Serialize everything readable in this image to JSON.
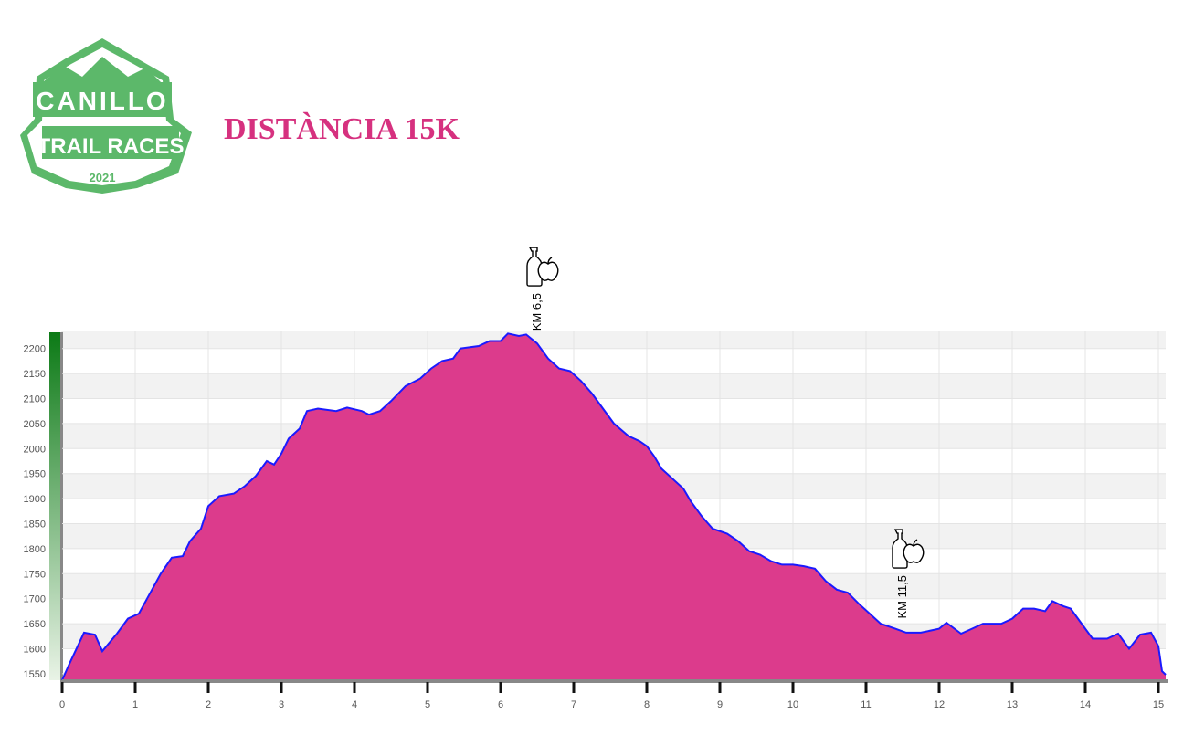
{
  "logo": {
    "line1": "CANILLO",
    "line2": "TRAIL RACES",
    "year": "2021"
  },
  "chart_data": {
    "type": "area",
    "title": "DISTÀNCIA 15K",
    "x": [
      0,
      0.1,
      0.3,
      0.45,
      0.55,
      0.75,
      0.9,
      1.05,
      1.2,
      1.35,
      1.5,
      1.65,
      1.75,
      1.9,
      2.0,
      2.15,
      2.35,
      2.5,
      2.65,
      2.8,
      2.9,
      3.0,
      3.1,
      3.25,
      3.35,
      3.5,
      3.75,
      3.9,
      4.1,
      4.2,
      4.35,
      4.5,
      4.7,
      4.9,
      5.05,
      5.2,
      5.35,
      5.45,
      5.7,
      5.85,
      6.0,
      6.1,
      6.25,
      6.35,
      6.5,
      6.65,
      6.8,
      6.95,
      7.1,
      7.25,
      7.4,
      7.55,
      7.75,
      7.9,
      8.0,
      8.1,
      8.2,
      8.35,
      8.5,
      8.6,
      8.75,
      8.9,
      9.1,
      9.25,
      9.4,
      9.55,
      9.7,
      9.85,
      10.0,
      10.15,
      10.3,
      10.45,
      10.6,
      10.75,
      10.9,
      11.05,
      11.2,
      11.4,
      11.55,
      11.75,
      12.0,
      12.1,
      12.3,
      12.45,
      12.6,
      12.85,
      13.0,
      13.15,
      13.3,
      13.45,
      13.55,
      13.7,
      13.8,
      13.9,
      14.0,
      14.1,
      14.3,
      14.45,
      14.6,
      14.75,
      14.9,
      15.0,
      15.05,
      15.1
    ],
    "series": [
      {
        "fill": "#dc3b8c",
        "color": "#1a1aff",
        "values": [
          1537,
          1570,
          1632,
          1628,
          1595,
          1630,
          1660,
          1670,
          1710,
          1750,
          1782,
          1785,
          1815,
          1840,
          1885,
          1905,
          1910,
          1925,
          1945,
          1975,
          1968,
          1990,
          2020,
          2040,
          2075,
          2080,
          2075,
          2082,
          2075,
          2068,
          2075,
          2095,
          2125,
          2140,
          2160,
          2175,
          2180,
          2200,
          2205,
          2215,
          2215,
          2230,
          2225,
          2228,
          2210,
          2180,
          2160,
          2155,
          2135,
          2110,
          2080,
          2050,
          2025,
          2015,
          2005,
          1985,
          1960,
          1940,
          1920,
          1895,
          1865,
          1840,
          1830,
          1815,
          1795,
          1788,
          1775,
          1768,
          1768,
          1765,
          1760,
          1735,
          1718,
          1712,
          1690,
          1670,
          1650,
          1640,
          1632,
          1632,
          1640,
          1652,
          1630,
          1640,
          1650,
          1650,
          1660,
          1680,
          1680,
          1675,
          1695,
          1685,
          1680,
          1660,
          1640,
          1620,
          1620,
          1630,
          1600,
          1628,
          1632,
          1605,
          1555,
          1548
        ]
      }
    ],
    "xlim": [
      0,
      15.1
    ],
    "xticks": [
      0,
      1,
      2,
      3,
      4,
      5,
      6,
      7,
      8,
      9,
      10,
      11,
      12,
      13,
      14,
      15
    ],
    "ylim": [
      1537,
      2236
    ],
    "yticks": [
      1550,
      1600,
      1650,
      1700,
      1750,
      1800,
      1850,
      1900,
      1950,
      2000,
      2050,
      2100,
      2150,
      2200
    ],
    "grid": true,
    "annotations": [
      {
        "x": 6.5,
        "text": "KM 6,5"
      },
      {
        "x": 11.5,
        "text": "KM 11,5"
      }
    ]
  }
}
